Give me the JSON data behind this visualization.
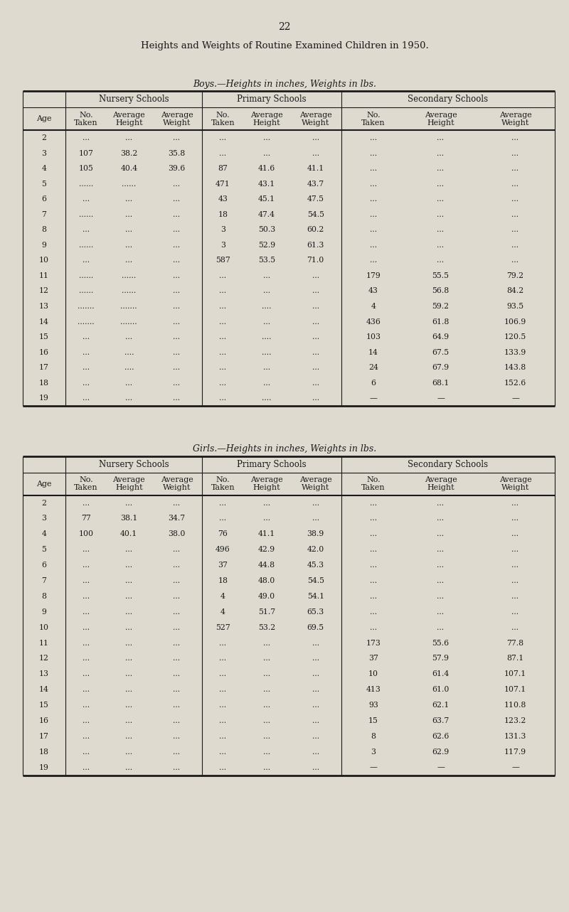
{
  "page_number": "22",
  "main_title": "Heights and Weights of Routine Examined Children in 1950.",
  "boys_subtitle": "Boys.—Heights in inches, Weights in lbs.",
  "girls_subtitle": "Girls.—Heights in inches, Weights in lbs.",
  "section_headers": [
    "Nursery Schools",
    "Primary Schools",
    "Secondary Schools"
  ],
  "age_label": "Age",
  "boys_ages": [
    2,
    3,
    4,
    5,
    6,
    7,
    8,
    9,
    10,
    11,
    12,
    13,
    14,
    15,
    16,
    17,
    18,
    19
  ],
  "boys_nursery": [
    [
      "...",
      "...",
      "..."
    ],
    [
      "107",
      "38.2",
      "35.8"
    ],
    [
      "105",
      "40.4",
      "39.6"
    ],
    [
      "......",
      "......",
      "..."
    ],
    [
      "...",
      "...",
      "..."
    ],
    [
      "......",
      "...",
      "..."
    ],
    [
      "...",
      "...",
      "..."
    ],
    [
      "......",
      "...",
      "..."
    ],
    [
      "...",
      "...",
      "..."
    ],
    [
      "......",
      "......",
      "..."
    ],
    [
      "......",
      "......",
      "..."
    ],
    [
      ".......",
      ".......",
      "..."
    ],
    [
      ".......",
      ".......",
      "..."
    ],
    [
      "...",
      "...",
      "..."
    ],
    [
      "...",
      "....",
      "..."
    ],
    [
      "...",
      "....",
      "..."
    ],
    [
      "...",
      "...",
      "..."
    ],
    [
      "...",
      "...",
      "..."
    ]
  ],
  "boys_primary": [
    [
      "...",
      "...",
      "..."
    ],
    [
      "...",
      "...",
      "..."
    ],
    [
      "87",
      "41.6",
      "41.1"
    ],
    [
      "471",
      "43.1",
      "43.7"
    ],
    [
      "43",
      "45.1",
      "47.5"
    ],
    [
      "18",
      "47.4",
      "54.5"
    ],
    [
      "3",
      "50.3",
      "60.2"
    ],
    [
      "3",
      "52.9",
      "61.3"
    ],
    [
      "587",
      "53.5",
      "71.0"
    ],
    [
      "...",
      "...",
      "..."
    ],
    [
      "...",
      "...",
      "..."
    ],
    [
      "...",
      "....",
      "..."
    ],
    [
      "...",
      "...",
      "..."
    ],
    [
      "...",
      "....",
      "..."
    ],
    [
      "...",
      "....",
      "..."
    ],
    [
      "...",
      "...",
      "..."
    ],
    [
      "...",
      "...",
      "..."
    ],
    [
      "...",
      "....",
      "..."
    ]
  ],
  "boys_secondary": [
    [
      "...",
      "...",
      "..."
    ],
    [
      "...",
      "...",
      "..."
    ],
    [
      "...",
      "...",
      "..."
    ],
    [
      "...",
      "...",
      "..."
    ],
    [
      "...",
      "...",
      "..."
    ],
    [
      "...",
      "...",
      "..."
    ],
    [
      "...",
      "...",
      "..."
    ],
    [
      "...",
      "...",
      "..."
    ],
    [
      "...",
      "...",
      "..."
    ],
    [
      "179",
      "55.5",
      "79.2"
    ],
    [
      "43",
      "56.8",
      "84.2"
    ],
    [
      "4",
      "59.2",
      "93.5"
    ],
    [
      "436",
      "61.8",
      "106.9"
    ],
    [
      "103",
      "64.9",
      "120.5"
    ],
    [
      "14",
      "67.5",
      "133.9"
    ],
    [
      "24",
      "67.9",
      "143.8"
    ],
    [
      "6",
      "68.1",
      "152.6"
    ],
    [
      "—",
      "—",
      "—"
    ]
  ],
  "girls_ages": [
    2,
    3,
    4,
    5,
    6,
    7,
    8,
    9,
    10,
    11,
    12,
    13,
    14,
    15,
    16,
    17,
    18,
    19
  ],
  "girls_nursery": [
    [
      "...",
      "...",
      "..."
    ],
    [
      "77",
      "38.1",
      "34.7"
    ],
    [
      "100",
      "40.1",
      "38.0"
    ],
    [
      "...",
      "...",
      "..."
    ],
    [
      "...",
      "...",
      "..."
    ],
    [
      "...",
      "...",
      "..."
    ],
    [
      "...",
      "...",
      "..."
    ],
    [
      "...",
      "...",
      "..."
    ],
    [
      "...",
      "...",
      "..."
    ],
    [
      "...",
      "...",
      "..."
    ],
    [
      "...",
      "...",
      "..."
    ],
    [
      "...",
      "...",
      "..."
    ],
    [
      "...",
      "...",
      "..."
    ],
    [
      "...",
      "...",
      "..."
    ],
    [
      "...",
      "...",
      "..."
    ],
    [
      "...",
      "...",
      "..."
    ],
    [
      "...",
      "...",
      "..."
    ],
    [
      "...",
      "...",
      "..."
    ]
  ],
  "girls_primary": [
    [
      "...",
      "...",
      "..."
    ],
    [
      "...",
      "...",
      "..."
    ],
    [
      "76",
      "41.1",
      "38.9"
    ],
    [
      "496",
      "42.9",
      "42.0"
    ],
    [
      "37",
      "44.8",
      "45.3"
    ],
    [
      "18",
      "48.0",
      "54.5"
    ],
    [
      "4",
      "49.0",
      "54.1"
    ],
    [
      "4",
      "51.7",
      "65.3"
    ],
    [
      "527",
      "53.2",
      "69.5"
    ],
    [
      "...",
      "...",
      "..."
    ],
    [
      "...",
      "...",
      "..."
    ],
    [
      "...",
      "...",
      "..."
    ],
    [
      "...",
      "...",
      "..."
    ],
    [
      "...",
      "...",
      "..."
    ],
    [
      "...",
      "...",
      "..."
    ],
    [
      "...",
      "...",
      "..."
    ],
    [
      "...",
      "...",
      "..."
    ],
    [
      "...",
      "...",
      "..."
    ]
  ],
  "girls_secondary": [
    [
      "...",
      "...",
      "..."
    ],
    [
      "...",
      "...",
      "..."
    ],
    [
      "...",
      "...",
      "..."
    ],
    [
      "...",
      "...",
      "..."
    ],
    [
      "...",
      "...",
      "..."
    ],
    [
      "...",
      "...",
      "..."
    ],
    [
      "...",
      "...",
      "..."
    ],
    [
      "...",
      "...",
      "..."
    ],
    [
      "...",
      "...",
      "..."
    ],
    [
      "173",
      "55.6",
      "77.8"
    ],
    [
      "37",
      "57.9",
      "87.1"
    ],
    [
      "10",
      "61.4",
      "107.1"
    ],
    [
      "413",
      "61.0",
      "107.1"
    ],
    [
      "93",
      "62.1",
      "110.8"
    ],
    [
      "15",
      "63.7",
      "123.2"
    ],
    [
      "8",
      "62.6",
      "131.3"
    ],
    [
      "3",
      "62.9",
      "117.9"
    ],
    [
      "—",
      "—",
      "—"
    ]
  ],
  "bg_color": "#dedad0",
  "text_color": "#1a1a1a",
  "line_color": "#1a1a1a",
  "font_size_page": 10,
  "font_size_main_title": 9.5,
  "font_size_subtitle": 9.0,
  "font_size_section_header": 8.5,
  "font_size_col_header": 8.0,
  "font_size_data": 7.8
}
